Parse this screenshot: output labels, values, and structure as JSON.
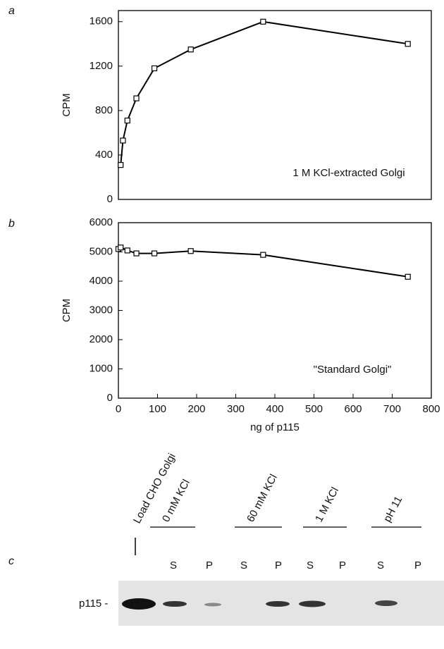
{
  "panel_labels": [
    "a",
    "b",
    "c"
  ],
  "chart_data": [
    {
      "type": "line",
      "ylabel": "CPM",
      "annotation": "1 M KCl-extracted Golgi",
      "x": [
        5.8,
        11.6,
        23,
        46,
        92,
        185,
        370,
        740
      ],
      "series": [
        {
          "name": "1 M KCl-extracted Golgi",
          "color": "#000000",
          "values": [
            310,
            530,
            710,
            910,
            1180,
            1350,
            1600,
            1400
          ]
        }
      ],
      "xlim": [
        0,
        800
      ],
      "ylim": [
        0,
        1700
      ],
      "yticks": [
        0,
        400,
        800,
        1200,
        1600
      ]
    },
    {
      "type": "line",
      "ylabel": "CPM",
      "xlabel": "ng of p115",
      "annotation": "\"Standard Golgi\"",
      "x": [
        0,
        5.8,
        23,
        46,
        92,
        185,
        370,
        740
      ],
      "series": [
        {
          "name": "\"Standard Golgi\"",
          "color": "#000000",
          "values": [
            5100,
            5150,
            5050,
            4950,
            4950,
            5030,
            4900,
            4150
          ]
        }
      ],
      "xlim": [
        0,
        800
      ],
      "ylim": [
        0,
        6000
      ],
      "xticks": [
        0,
        100,
        200,
        300,
        400,
        500,
        600,
        700,
        800
      ],
      "yticks": [
        0,
        1000,
        2000,
        3000,
        4000,
        5000,
        6000
      ]
    }
  ],
  "blot": {
    "load_label": "Load CHO Golgi",
    "groups": [
      {
        "label": "0 mM KCl",
        "lanes": [
          "S",
          "P"
        ]
      },
      {
        "label": "60 mM KCl",
        "lanes": [
          "S",
          "P"
        ]
      },
      {
        "label": "1 M KCl",
        "lanes": [
          "S",
          "P"
        ]
      },
      {
        "label": "pH 11",
        "lanes": [
          "S",
          "P"
        ]
      }
    ],
    "band_label": "p115 -"
  }
}
